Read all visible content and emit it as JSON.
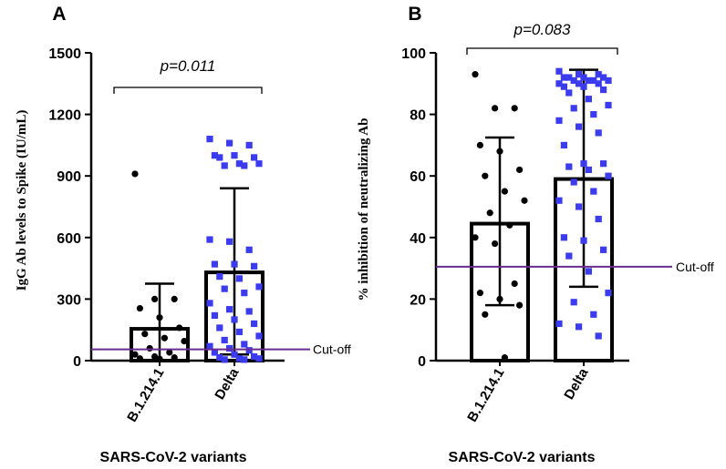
{
  "chart_data": [
    {
      "panel": "A",
      "type": "bar",
      "ylabel": "IgG Ab levels to Spike (IU/mL)",
      "xlabel": "SARS-CoV-2 variants",
      "ylim": [
        0,
        1500
      ],
      "yticks": [
        "0",
        "300",
        "600",
        "900",
        "1200",
        "1500"
      ],
      "categories": [
        "B.1.214.1",
        "Delta"
      ],
      "values": [
        155,
        430
      ],
      "error_upper": [
        375,
        840
      ],
      "error_lower": [
        0,
        30
      ],
      "p_value": "p=0.011",
      "cutoff": 55,
      "cutoff_label": "Cut-off",
      "points": [
        [
          910,
          300,
          300,
          255,
          210,
          160,
          130,
          110,
          95,
          60,
          40,
          30,
          20,
          15,
          10,
          8
        ],
        [
          1080,
          1060,
          1050,
          1000,
          1000,
          990,
          990,
          960,
          960,
          950,
          950,
          590,
          580,
          540,
          470,
          470,
          460,
          410,
          400,
          360,
          350,
          330,
          280,
          250,
          240,
          220,
          200,
          180,
          160,
          140,
          120,
          100,
          80,
          70,
          60,
          50,
          40,
          30,
          20,
          15,
          10,
          10,
          5,
          5
        ]
      ],
      "point_colors": [
        "#000000",
        "#3b3bef"
      ],
      "point_shapes": [
        "circle",
        "square"
      ]
    },
    {
      "panel": "B",
      "type": "bar",
      "ylabel": "% inhibition of neutralizing Ab",
      "xlabel": "SARS-CoV-2 variants",
      "ylim": [
        0,
        100
      ],
      "yticks": [
        "0",
        "20",
        "40",
        "60",
        "80",
        "100"
      ],
      "categories": [
        "B.1.214.1",
        "Delta"
      ],
      "values": [
        44.5,
        59
      ],
      "error_upper": [
        72.5,
        94.5
      ],
      "error_lower": [
        18,
        24
      ],
      "p_value": "p=0.083",
      "cutoff": 30.5,
      "cutoff_label": "Cut-off",
      "points": [
        [
          93,
          82,
          82,
          70,
          68,
          62,
          60,
          55,
          52,
          48,
          44,
          40,
          38,
          25,
          22,
          20,
          18,
          15,
          1
        ],
        [
          94,
          93,
          93,
          92,
          92,
          92,
          92,
          91,
          91,
          91,
          91,
          90,
          90,
          90,
          89,
          89,
          88,
          87,
          85,
          83,
          82,
          80,
          78,
          76,
          74,
          70,
          64,
          64,
          63,
          62,
          60,
          58,
          55,
          52,
          50,
          46,
          40,
          39,
          36,
          34,
          29,
          22,
          19,
          15,
          12,
          11,
          8
        ]
      ],
      "point_colors": [
        "#000000",
        "#3b3bef"
      ],
      "point_shapes": [
        "circle",
        "square"
      ]
    }
  ]
}
